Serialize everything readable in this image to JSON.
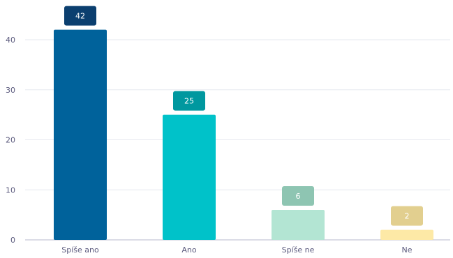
{
  "chart_data": {
    "type": "bar",
    "categories": [
      "Spíše ano",
      "Ano",
      "Spíše ne",
      "Ne"
    ],
    "values": [
      42,
      25,
      6,
      2
    ],
    "bar_colors": [
      "#00629b",
      "#00c2c9",
      "#b3e5d3",
      "#fde9a6"
    ],
    "label_colors": [
      "#0b3f6f",
      "#00989f",
      "#8ec5b2",
      "#e2cf8f"
    ],
    "gridline_color": "#e6e8ef",
    "axis_color": "#b7b9cc",
    "ylim": [
      0,
      40
    ],
    "yticks": [
      "0",
      "10",
      "20",
      "30",
      "40"
    ],
    "grid": true,
    "legend": "none",
    "title": "",
    "xlabel": "",
    "ylabel": ""
  }
}
